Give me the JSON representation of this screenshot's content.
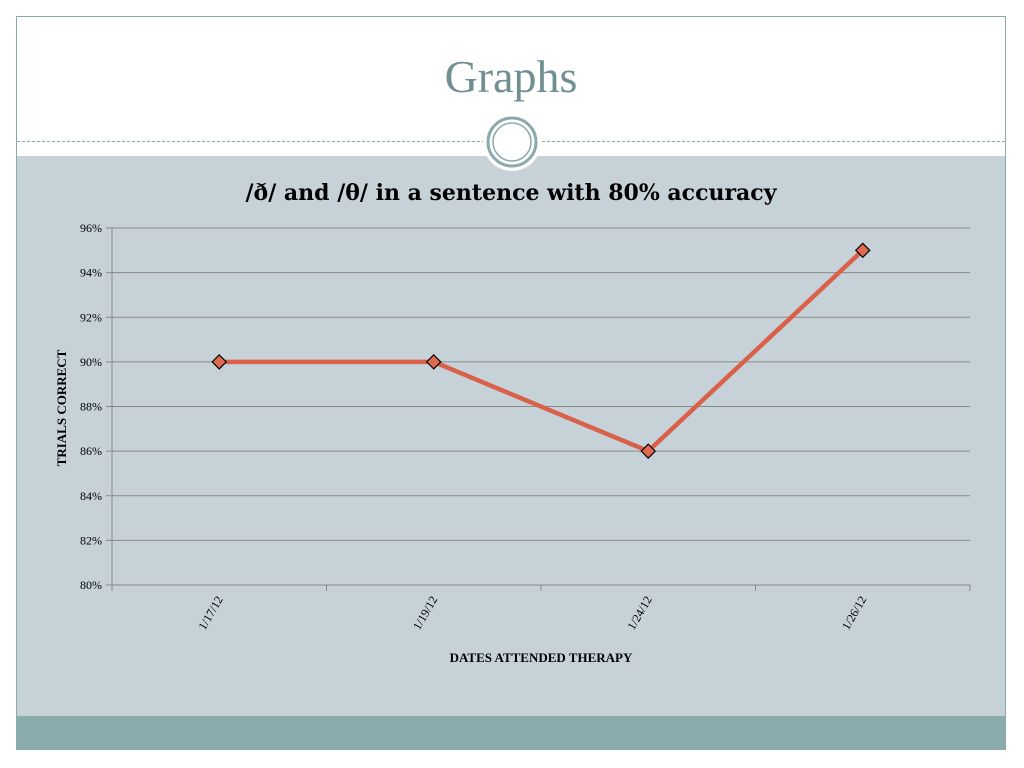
{
  "slide": {
    "title": "Graphs"
  },
  "colors": {
    "title": "#6f8f93",
    "panel": "#c7d2d8",
    "band": "#8aacad",
    "line": "#d9614a",
    "marker": "#e06b52",
    "gridline": "#888888"
  },
  "chart_data": {
    "type": "line",
    "title": "/ð/ and /θ/ in a sentence with 80% accuracy",
    "xlabel": "DATES ATTENDED THERAPY",
    "ylabel": "TRIALS CORRECT",
    "categories": [
      "1/17/12",
      "1/19/12",
      "1/24/12",
      "1/26/12"
    ],
    "series": [
      {
        "values": [
          0.9,
          0.9,
          0.86,
          0.95
        ]
      }
    ],
    "ylim": [
      0.8,
      0.96
    ],
    "yticks": [
      "80%",
      "82%",
      "84%",
      "86%",
      "88%",
      "90%",
      "92%",
      "94%",
      "96%"
    ],
    "grid": true,
    "legend": "none",
    "marker": "diamond"
  }
}
